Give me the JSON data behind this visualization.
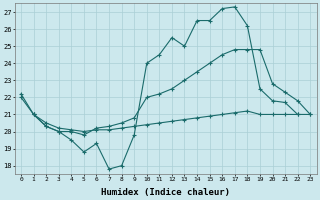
{
  "xlabel": "Humidex (Indice chaleur)",
  "bg_color": "#cce8ed",
  "grid_color": "#aacfd6",
  "line_color": "#1a6b6b",
  "xlim": [
    -0.5,
    23.5
  ],
  "ylim": [
    17.5,
    27.5
  ],
  "yticks": [
    18,
    19,
    20,
    21,
    22,
    23,
    24,
    25,
    26,
    27
  ],
  "xticks": [
    0,
    1,
    2,
    3,
    4,
    5,
    6,
    7,
    8,
    9,
    10,
    11,
    12,
    13,
    14,
    15,
    16,
    17,
    18,
    19,
    20,
    21,
    22,
    23
  ],
  "line1_x": [
    0,
    1,
    2,
    3,
    4,
    5,
    6,
    7,
    8,
    9,
    10,
    11,
    12,
    13,
    14,
    15,
    16,
    17,
    18,
    19,
    20,
    21,
    22
  ],
  "line1_y": [
    22.2,
    21.0,
    20.3,
    20.0,
    19.5,
    18.8,
    19.3,
    17.8,
    18.0,
    19.8,
    24.0,
    24.5,
    25.5,
    25.0,
    26.5,
    26.5,
    27.2,
    27.3,
    26.2,
    22.5,
    21.8,
    21.7,
    21.0
  ],
  "line2_x": [
    0,
    1,
    2,
    3,
    4,
    5,
    6,
    7,
    8,
    9,
    10,
    11,
    12,
    13,
    14,
    15,
    16,
    17,
    18,
    19,
    20,
    21,
    22,
    23
  ],
  "line2_y": [
    22.0,
    21.0,
    20.3,
    20.0,
    20.0,
    19.8,
    20.2,
    20.3,
    20.5,
    20.8,
    22.0,
    22.2,
    22.5,
    23.0,
    23.5,
    24.0,
    24.5,
    24.8,
    24.8,
    24.8,
    22.8,
    22.3,
    21.8,
    21.0
  ],
  "line3_x": [
    1,
    2,
    3,
    4,
    5,
    6,
    7,
    8,
    9,
    10,
    11,
    12,
    13,
    14,
    15,
    16,
    17,
    18,
    19,
    20,
    21,
    22,
    23
  ],
  "line3_y": [
    21.0,
    20.5,
    20.2,
    20.1,
    20.0,
    20.1,
    20.1,
    20.2,
    20.3,
    20.4,
    20.5,
    20.6,
    20.7,
    20.8,
    20.9,
    21.0,
    21.1,
    21.2,
    21.0,
    21.0,
    21.0,
    21.0,
    21.0
  ]
}
